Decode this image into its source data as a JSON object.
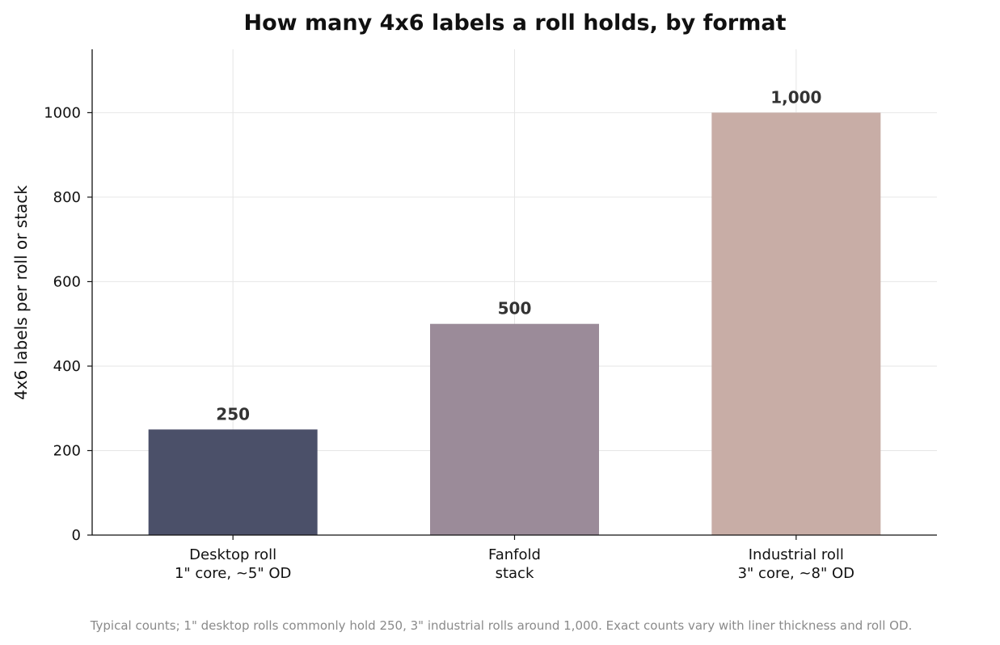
{
  "chart_data": {
    "type": "bar",
    "title": "How many 4x6 labels a roll holds, by format",
    "ylabel": "4x6 labels per roll or stack",
    "xlabel": "",
    "categories": [
      [
        "Desktop roll",
        "1\" core, ~5\" OD"
      ],
      [
        "Fanfold",
        "stack"
      ],
      [
        "Industrial roll",
        "3\" core, ~8\" OD"
      ]
    ],
    "values": [
      250,
      500,
      1000
    ],
    "value_labels": [
      "250",
      "500",
      "1,000"
    ],
    "colors": [
      "#4b5069",
      "#9b8b99",
      "#c8ada6"
    ],
    "ylim": [
      0,
      1150
    ],
    "yticks": [
      0,
      200,
      400,
      600,
      800,
      1000
    ],
    "grid": true,
    "footnote": "Typical counts; 1\" desktop rolls commonly hold 250, 3\" industrial rolls around 1,000. Exact counts vary with liner thickness and roll OD."
  }
}
